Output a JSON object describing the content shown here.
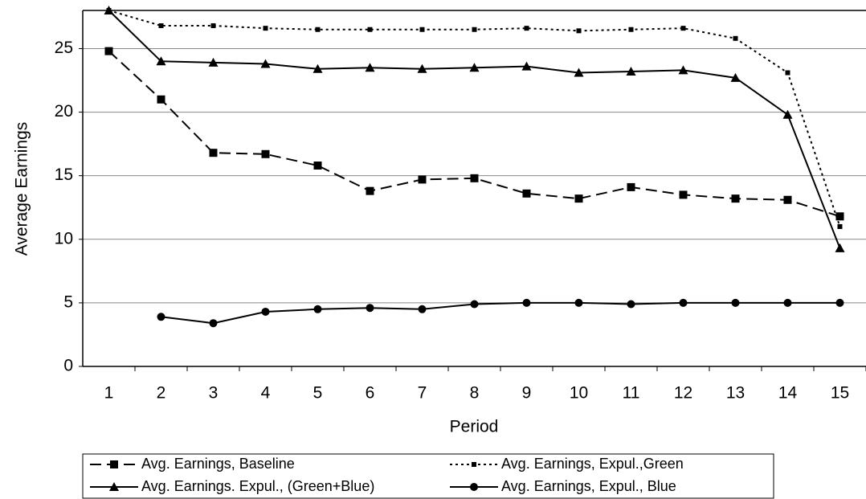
{
  "chart_data": {
    "type": "line",
    "x_label": "Period",
    "y_label": "Average Earnings",
    "categories": [
      "1",
      "2",
      "3",
      "4",
      "5",
      "6",
      "7",
      "8",
      "9",
      "10",
      "11",
      "12",
      "13",
      "14",
      "15"
    ],
    "ylim": [
      0,
      28
    ],
    "yticks": [
      0,
      5,
      10,
      15,
      20,
      25
    ],
    "grid": true,
    "legend": "bottom",
    "series": [
      {
        "name": "Avg. Earnings, Baseline",
        "color": "#000000",
        "line_style": "dashed",
        "marker": "square",
        "values": [
          24.8,
          21.0,
          16.8,
          16.7,
          15.8,
          13.8,
          14.7,
          14.8,
          13.6,
          13.2,
          14.1,
          13.5,
          13.2,
          13.1,
          11.8
        ]
      },
      {
        "name": "Avg. Earnings, Expul.,Green",
        "color": "#000000",
        "line_style": "dotted",
        "marker": "small-square",
        "values": [
          28,
          26.8,
          26.8,
          26.6,
          26.5,
          26.5,
          26.5,
          26.5,
          26.6,
          26.4,
          26.5,
          26.6,
          25.8,
          23.1,
          11.0
        ]
      },
      {
        "name": "Avg. Earnings. Expul., (Green+Blue)",
        "color": "#000000",
        "line_style": "solid",
        "marker": "triangle",
        "values": [
          28,
          24.0,
          23.9,
          23.8,
          23.4,
          23.5,
          23.4,
          23.5,
          23.6,
          23.1,
          23.2,
          23.3,
          22.7,
          19.8,
          9.3
        ]
      },
      {
        "name": "Avg. Earnings, Expul., Blue",
        "color": "#000000",
        "line_style": "solid",
        "marker": "circle",
        "values": [
          null,
          3.9,
          3.4,
          4.3,
          4.5,
          4.6,
          4.5,
          4.9,
          5.0,
          5.0,
          4.9,
          5.0,
          5.0,
          5.0,
          5.0
        ]
      }
    ]
  }
}
